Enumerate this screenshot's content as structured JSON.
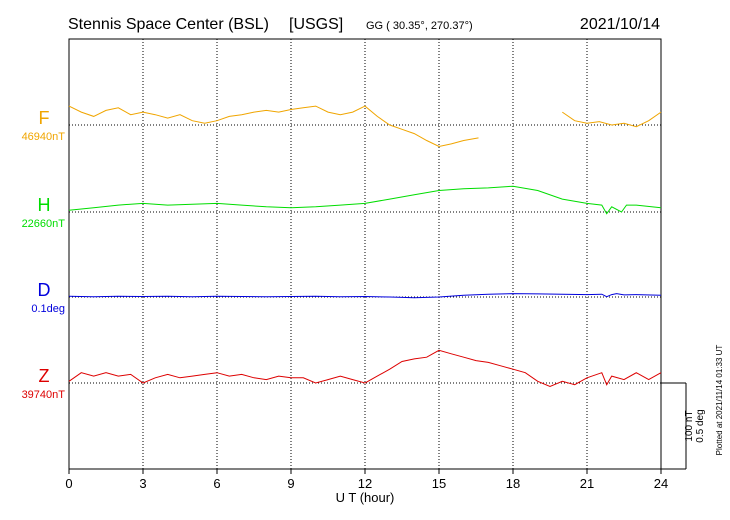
{
  "header": {
    "station": "Stennis Space Center (BSL)",
    "agency": "[USGS]",
    "coords": "GG ( 30.35°, 270.37°)",
    "date": "2021/10/14"
  },
  "plotted_note": "Plotted at 2021/11/14 01:33 UT",
  "scale_labels": [
    "100 nT",
    "0.5 deg"
  ],
  "chart_data": {
    "type": "line",
    "xlabel": "U T (hour)",
    "xlim": [
      0,
      24
    ],
    "xticks": [
      "0",
      "3",
      "6",
      "9",
      "12",
      "15",
      "18",
      "21",
      "24"
    ],
    "grid": true,
    "scale_bar_nT": 100,
    "series": [
      {
        "name": "F",
        "baseline_label": "46940nT",
        "baseline": 46940,
        "unit": "nT",
        "color": "#f0a500",
        "segments": [
          [
            [
              0,
              46962
            ],
            [
              0.5,
              46955
            ],
            [
              1,
              46950
            ],
            [
              1.5,
              46957
            ],
            [
              2,
              46960
            ],
            [
              2.5,
              46952
            ],
            [
              3,
              46955
            ],
            [
              3.5,
              46952
            ],
            [
              4,
              46948
            ],
            [
              4.5,
              46952
            ],
            [
              5,
              46945
            ],
            [
              5.5,
              46942
            ],
            [
              6,
              46945
            ],
            [
              6.5,
              46950
            ],
            [
              7,
              46952
            ],
            [
              7.5,
              46955
            ],
            [
              8,
              46957
            ],
            [
              8.5,
              46955
            ],
            [
              9,
              46958
            ],
            [
              9.5,
              46960
            ],
            [
              10,
              46962
            ],
            [
              10.5,
              46955
            ],
            [
              11,
              46952
            ],
            [
              11.5,
              46955
            ],
            [
              12,
              46962
            ],
            [
              12.5,
              46950
            ],
            [
              13,
              46940
            ],
            [
              13.5,
              46935
            ],
            [
              14,
              46930
            ],
            [
              14.5,
              46922
            ],
            [
              15,
              46915
            ],
            [
              15.5,
              46918
            ],
            [
              16,
              46922
            ],
            [
              16.6,
              46925
            ]
          ],
          [
            [
              20,
              46955
            ],
            [
              20.5,
              46945
            ],
            [
              21,
              46942
            ],
            [
              21.5,
              46944
            ],
            [
              22,
              46940
            ],
            [
              22.5,
              46942
            ],
            [
              23,
              46938
            ],
            [
              23.5,
              46945
            ],
            [
              24,
              46955
            ]
          ]
        ]
      },
      {
        "name": "H",
        "baseline_label": "22660nT",
        "baseline": 22660,
        "unit": "nT",
        "color": "#00dd00",
        "segments": [
          [
            [
              0,
              22662
            ],
            [
              1,
              22665
            ],
            [
              2,
              22668
            ],
            [
              3,
              22670
            ],
            [
              4,
              22668
            ],
            [
              5,
              22669
            ],
            [
              6,
              22670
            ],
            [
              7,
              22668
            ],
            [
              8,
              22666
            ],
            [
              9,
              22665
            ],
            [
              10,
              22666
            ],
            [
              11,
              22668
            ],
            [
              12,
              22670
            ],
            [
              13,
              22675
            ],
            [
              14,
              22680
            ],
            [
              15,
              22685
            ],
            [
              16,
              22687
            ],
            [
              17,
              22688
            ],
            [
              18,
              22690
            ],
            [
              19,
              22685
            ],
            [
              20,
              22675
            ],
            [
              21,
              22670
            ],
            [
              21.6,
              22668
            ],
            [
              21.8,
              22658
            ],
            [
              22,
              22666
            ],
            [
              22.4,
              22660
            ],
            [
              22.6,
              22668
            ],
            [
              23,
              22668
            ],
            [
              24,
              22665
            ]
          ]
        ]
      },
      {
        "name": "D",
        "baseline_label": "0.1deg",
        "baseline": 0.1,
        "unit": "deg",
        "color": "#0000dd",
        "segments": [
          [
            [
              0,
              0.104
            ],
            [
              1,
              0.102
            ],
            [
              2,
              0.104
            ],
            [
              3,
              0.103
            ],
            [
              4,
              0.104
            ],
            [
              5,
              0.102
            ],
            [
              6,
              0.104
            ],
            [
              7,
              0.103
            ],
            [
              8,
              0.102
            ],
            [
              9,
              0.103
            ],
            [
              10,
              0.104
            ],
            [
              11,
              0.102
            ],
            [
              12,
              0.103
            ],
            [
              13,
              0.1
            ],
            [
              14,
              0.096
            ],
            [
              15,
              0.1
            ],
            [
              16,
              0.11
            ],
            [
              17,
              0.116
            ],
            [
              18,
              0.12
            ],
            [
              19,
              0.118
            ],
            [
              20,
              0.116
            ],
            [
              21,
              0.114
            ],
            [
              21.6,
              0.116
            ],
            [
              21.8,
              0.102
            ],
            [
              22,
              0.114
            ],
            [
              22.2,
              0.12
            ],
            [
              22.5,
              0.112
            ],
            [
              23,
              0.114
            ],
            [
              24,
              0.11
            ]
          ]
        ]
      },
      {
        "name": "Z",
        "baseline_label": "39740nT",
        "baseline": 39740,
        "unit": "nT",
        "color": "#dd0000",
        "segments": [
          [
            [
              0,
              39742
            ],
            [
              0.5,
              39752
            ],
            [
              1,
              39748
            ],
            [
              1.5,
              39752
            ],
            [
              2,
              39748
            ],
            [
              2.5,
              39750
            ],
            [
              3,
              39740
            ],
            [
              3.5,
              39746
            ],
            [
              4,
              39750
            ],
            [
              4.5,
              39746
            ],
            [
              5,
              39748
            ],
            [
              5.5,
              39750
            ],
            [
              6,
              39752
            ],
            [
              6.5,
              39748
            ],
            [
              7,
              39750
            ],
            [
              7.5,
              39746
            ],
            [
              8,
              39744
            ],
            [
              8.5,
              39748
            ],
            [
              9,
              39746
            ],
            [
              9.5,
              39746
            ],
            [
              10,
              39740
            ],
            [
              10.5,
              39744
            ],
            [
              11,
              39748
            ],
            [
              11.5,
              39744
            ],
            [
              12,
              39740
            ],
            [
              12.5,
              39748
            ],
            [
              13,
              39756
            ],
            [
              13.5,
              39765
            ],
            [
              14,
              39768
            ],
            [
              14.5,
              39770
            ],
            [
              15,
              39778
            ],
            [
              15.5,
              39774
            ],
            [
              16,
              39770
            ],
            [
              16.5,
              39766
            ],
            [
              17,
              39764
            ],
            [
              17.5,
              39760
            ],
            [
              18,
              39756
            ],
            [
              18.5,
              39752
            ],
            [
              19,
              39742
            ],
            [
              19.5,
              39736
            ],
            [
              20,
              39742
            ],
            [
              20.5,
              39738
            ],
            [
              21,
              39746
            ],
            [
              21.6,
              39752
            ],
            [
              21.8,
              39738
            ],
            [
              22,
              39748
            ],
            [
              22.5,
              39744
            ],
            [
              23,
              39752
            ],
            [
              23.5,
              39744
            ],
            [
              24,
              39752
            ]
          ]
        ]
      }
    ]
  }
}
